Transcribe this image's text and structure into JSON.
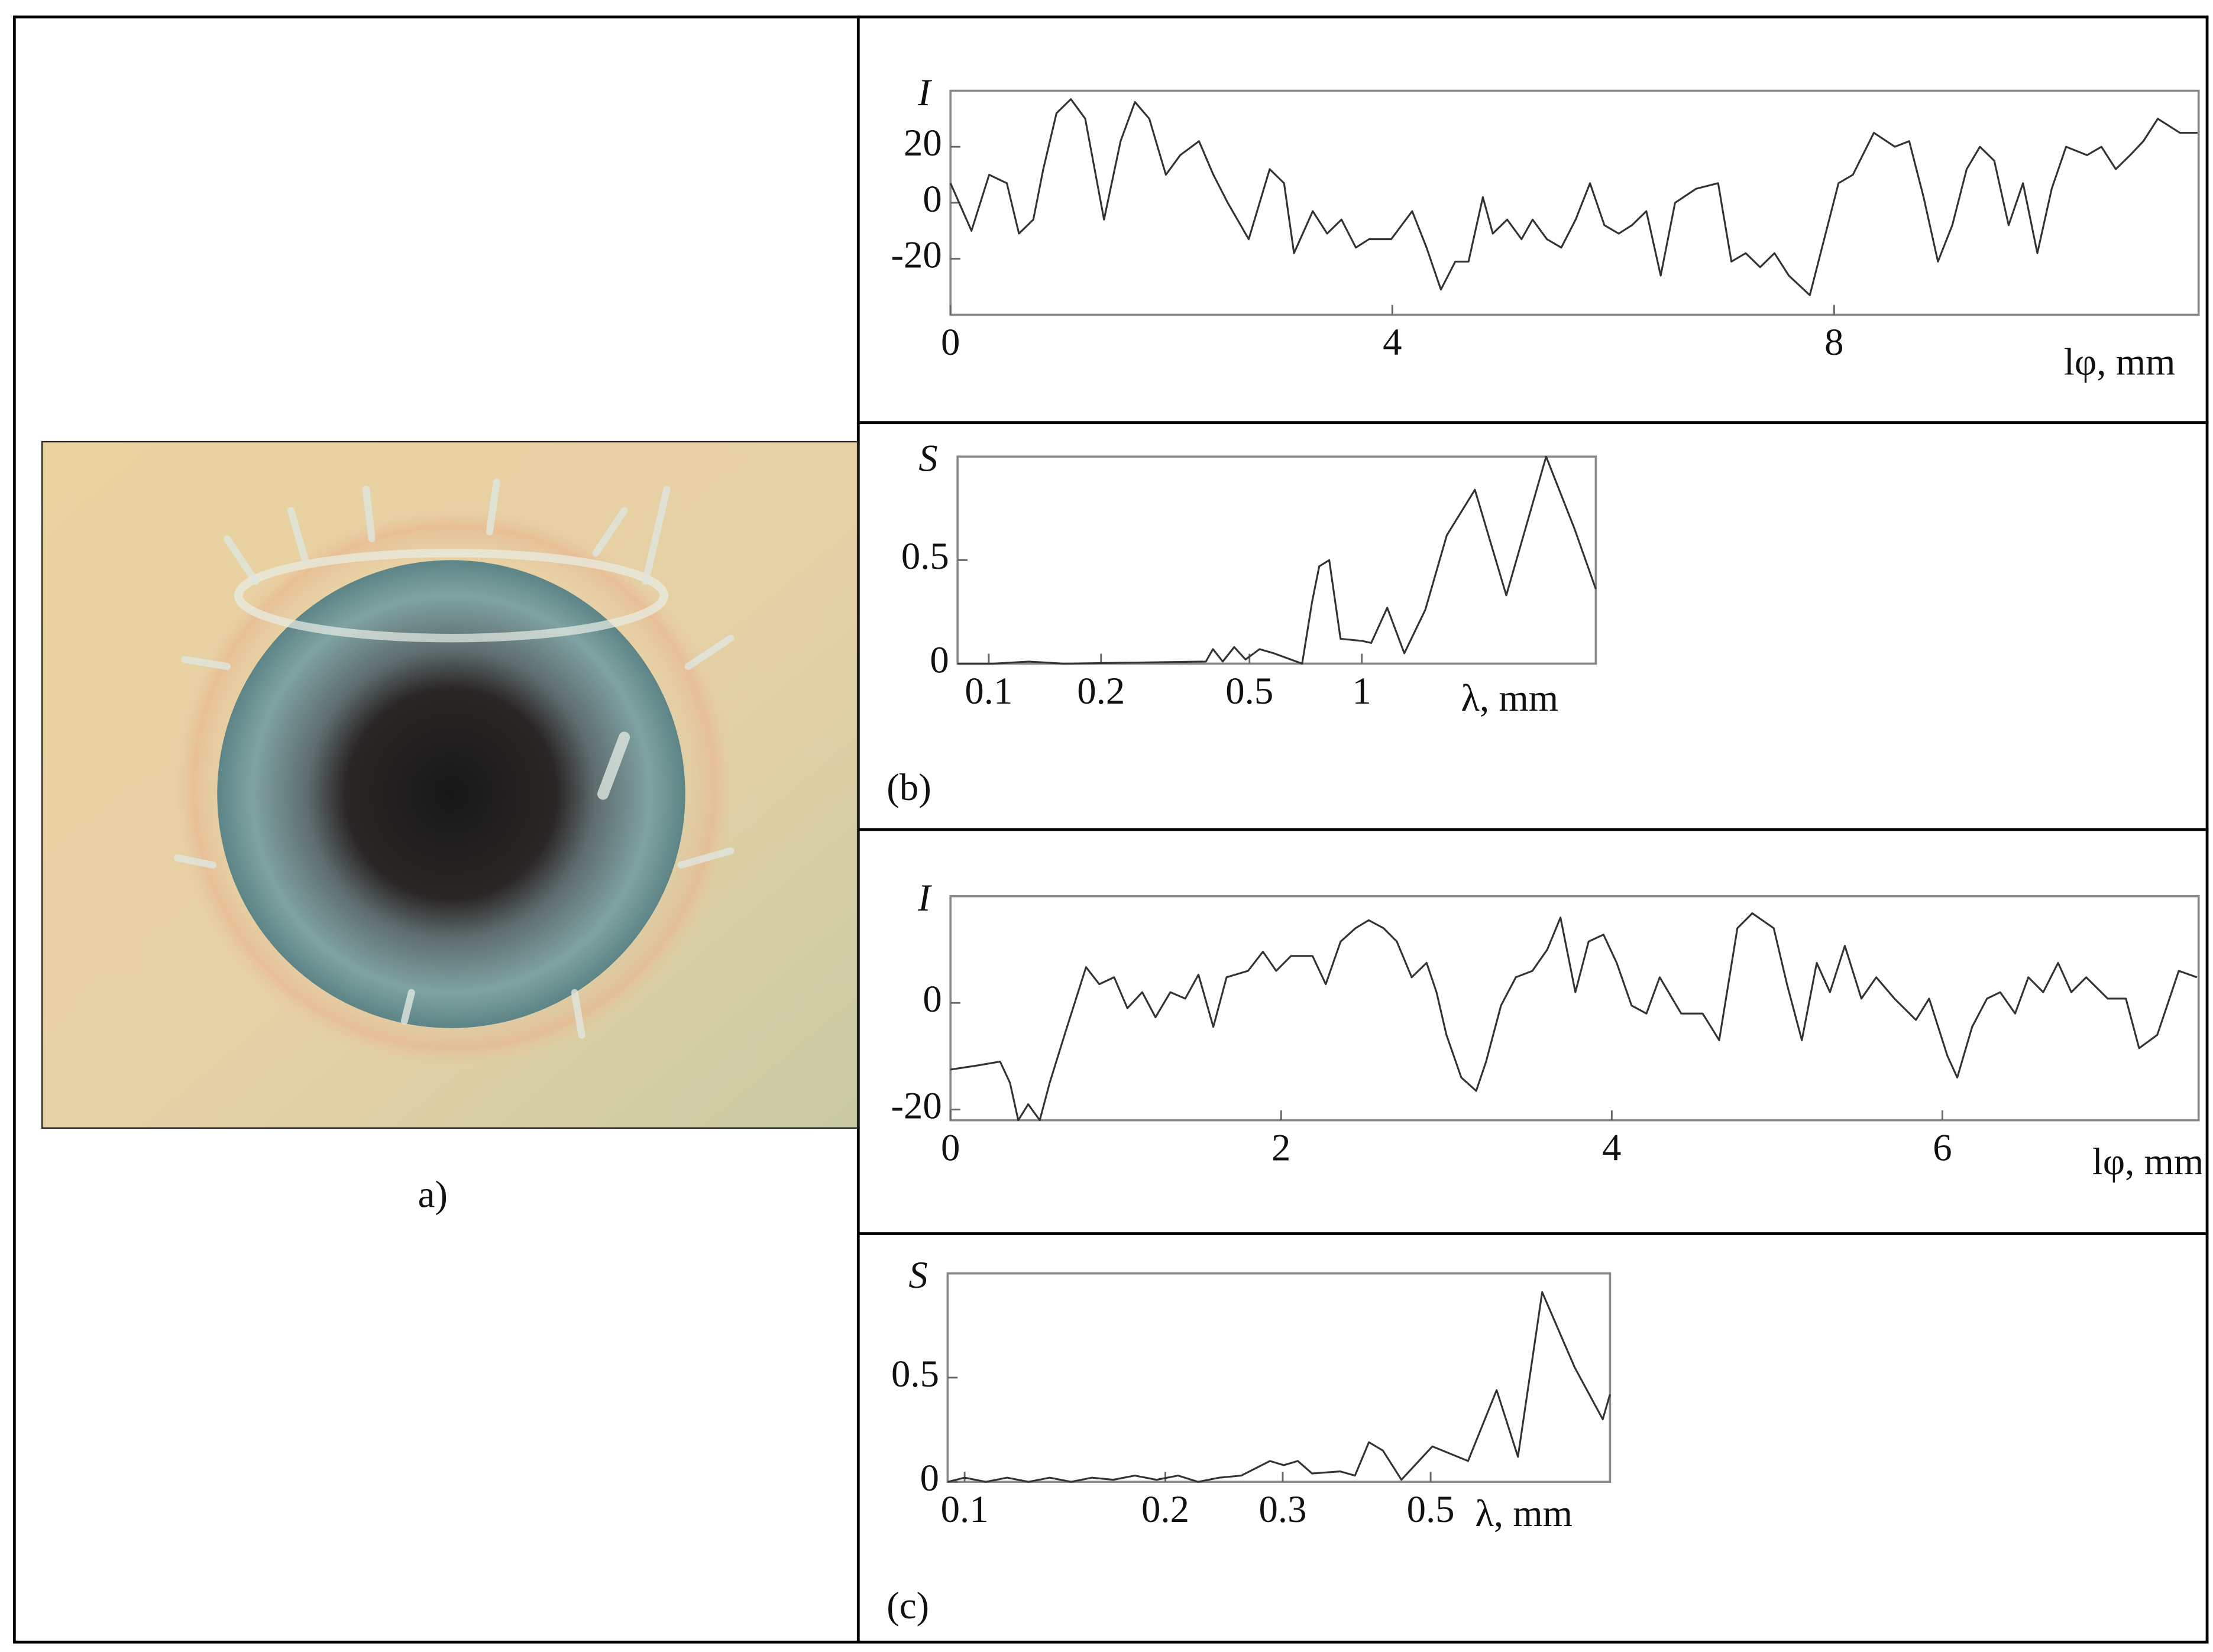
{
  "labels": {
    "a": "a)",
    "b": "(b)",
    "c": "(c)"
  },
  "chart_data": [
    {
      "type": "line",
      "y_label": "I",
      "x_label": "lφ, mm",
      "color": "#333333",
      "xlim": [
        0,
        11.3
      ],
      "ylim": [
        -40,
        40
      ],
      "xticks": [
        0,
        4,
        8
      ],
      "yticks": [
        -20,
        0,
        20
      ],
      "x": [
        0,
        0.19,
        0.35,
        0.51,
        0.62,
        0.75,
        0.84,
        0.96,
        1.09,
        1.22,
        1.39,
        1.54,
        1.67,
        1.8,
        1.95,
        2.08,
        2.25,
        2.38,
        2.51,
        2.7,
        2.89,
        3.02,
        3.11,
        3.28,
        3.41,
        3.54,
        3.67,
        3.79,
        3.99,
        4.18,
        4.31,
        4.44,
        4.57,
        4.69,
        4.82,
        4.91,
        5.04,
        5.17,
        5.27,
        5.4,
        5.53,
        5.66,
        5.79,
        5.92,
        6.05,
        6.17,
        6.3,
        6.43,
        6.56,
        6.75,
        6.95,
        7.07,
        7.2,
        7.33,
        7.46,
        7.59,
        7.78,
        7.91,
        8.04,
        8.17,
        8.36,
        8.55,
        8.68,
        8.81,
        8.94,
        9.07,
        9.2,
        9.32,
        9.45,
        9.58,
        9.71,
        9.84,
        9.97,
        10.1,
        10.29,
        10.42,
        10.55,
        10.68,
        10.8,
        10.93,
        11.13,
        11.29
      ],
      "values": [
        7,
        -10,
        10,
        7,
        -11,
        -6,
        12,
        32,
        37,
        30,
        -6,
        22,
        36,
        30,
        10,
        17,
        22,
        10,
        0,
        -13,
        12,
        7,
        -18,
        -3,
        -11,
        -6,
        -16,
        -13,
        -13,
        -3,
        -16,
        -31,
        -21,
        -21,
        2,
        -11,
        -6,
        -13,
        -6,
        -13,
        -16,
        -6,
        7,
        -8,
        -11,
        -8,
        -3,
        -26,
        0,
        5,
        7,
        -21,
        -18,
        -23,
        -18,
        -26,
        -33,
        -13,
        7,
        10,
        25,
        20,
        22,
        2,
        -21,
        -8,
        12,
        20,
        15,
        -8,
        7,
        -18,
        5,
        20,
        17,
        20,
        12,
        17,
        22,
        30,
        25,
        25
      ]
    },
    {
      "type": "line",
      "y_label": "S",
      "x_label": "λ, mm",
      "color": "#333333",
      "xscale": "log",
      "xlim": [
        0.0825,
        4.24
      ],
      "ylim": [
        0,
        1
      ],
      "xticks": [
        0.1,
        0.2,
        0.5,
        1
      ],
      "yticks": [
        0,
        0.5
      ],
      "x": [
        0.0825,
        0.1026,
        0.128,
        0.159,
        0.247,
        0.382,
        0.399,
        0.424,
        0.455,
        0.488,
        0.532,
        0.581,
        0.645,
        0.692,
        0.736,
        0.769,
        0.818,
        0.877,
        1.0,
        1.06,
        1.17,
        1.3,
        1.48,
        1.69,
        2.01,
        2.44,
        3.12,
        3.72,
        4.24
      ],
      "values": [
        0,
        0,
        0.01,
        0,
        0.005,
        0.01,
        0.07,
        0.01,
        0.08,
        0.02,
        0.07,
        0.05,
        0.02,
        0,
        0.3,
        0.47,
        0.5,
        0.12,
        0.11,
        0.1,
        0.27,
        0.05,
        0.26,
        0.62,
        0.84,
        0.33,
        1.0,
        0.65,
        0.36
      ]
    },
    {
      "type": "line",
      "y_label": "I",
      "x_label": "lφ, mm",
      "color": "#333333",
      "xlim": [
        0,
        7.55
      ],
      "ylim": [
        -22,
        20
      ],
      "xticks": [
        0,
        2,
        4,
        6
      ],
      "yticks": [
        -20,
        0
      ],
      "x": [
        0,
        0.17,
        0.3,
        0.36,
        0.41,
        0.47,
        0.54,
        0.6,
        0.69,
        0.82,
        0.9,
        0.99,
        1.07,
        1.16,
        1.24,
        1.33,
        1.42,
        1.5,
        1.59,
        1.67,
        1.8,
        1.89,
        1.97,
        2.06,
        2.19,
        2.27,
        2.36,
        2.45,
        2.53,
        2.62,
        2.7,
        2.79,
        2.88,
        2.94,
        3.0,
        3.09,
        3.18,
        3.24,
        3.33,
        3.42,
        3.52,
        3.61,
        3.69,
        3.78,
        3.86,
        3.95,
        4.03,
        4.12,
        4.21,
        4.29,
        4.42,
        4.55,
        4.65,
        4.76,
        4.85,
        4.98,
        5.06,
        5.15,
        5.24,
        5.32,
        5.41,
        5.51,
        5.6,
        5.71,
        5.84,
        5.92,
        6.03,
        6.09,
        6.18,
        6.27,
        6.35,
        6.44,
        6.52,
        6.61,
        6.7,
        6.78,
        6.87,
        7.0,
        7.11,
        7.19,
        7.3,
        7.43,
        7.54
      ],
      "values": [
        -12.5,
        -11.7,
        -11,
        -15,
        -22,
        -19,
        -22,
        -15,
        -6,
        6.7,
        3.5,
        4.8,
        -1,
        2,
        -2.7,
        2,
        0.8,
        5.3,
        -4.5,
        4.8,
        6,
        9.6,
        6,
        8.8,
        8.8,
        3.5,
        11.5,
        14,
        15.5,
        14,
        11.5,
        4.8,
        7.5,
        2,
        -6,
        -14,
        -16.5,
        -11,
        -0.5,
        4.8,
        6,
        10,
        16,
        2,
        11.5,
        12.8,
        7.5,
        -0.5,
        -2,
        4.8,
        -2,
        -2,
        -7,
        14,
        16.8,
        14,
        3.5,
        -7,
        7.5,
        2,
        10.7,
        0.8,
        4.8,
        0.8,
        -3.2,
        0.8,
        -9.9,
        -14,
        -4.5,
        0.8,
        2,
        -2,
        4.8,
        2,
        7.5,
        2,
        4.8,
        0.8,
        0.8,
        -8.5,
        -6,
        6,
        4.8
      ]
    },
    {
      "type": "line",
      "y_label": "S",
      "x_label": "λ, mm",
      "color": "#333333",
      "xscale": "log",
      "xlim": [
        0.0943,
        0.929
      ],
      "ylim": [
        0,
        1
      ],
      "xticks": [
        0.1,
        0.2,
        0.3,
        0.5
      ],
      "yticks": [
        0,
        0.5
      ],
      "x": [
        0.0943,
        0.1,
        0.1076,
        0.1158,
        0.1247,
        0.1342,
        0.1444,
        0.1553,
        0.1671,
        0.18,
        0.194,
        0.209,
        0.224,
        0.241,
        0.26,
        0.287,
        0.301,
        0.316,
        0.332,
        0.366,
        0.385,
        0.404,
        0.424,
        0.452,
        0.503,
        0.569,
        0.628,
        0.676,
        0.735,
        0.822,
        0.906,
        0.929
      ],
      "values": [
        0,
        0.02,
        0,
        0.02,
        0,
        0.02,
        0,
        0.02,
        0.01,
        0.03,
        0.01,
        0.03,
        0,
        0.02,
        0.03,
        0.1,
        0.08,
        0.1,
        0.04,
        0.05,
        0.03,
        0.19,
        0.15,
        0.01,
        0.17,
        0.1,
        0.44,
        0.12,
        0.91,
        0.55,
        0.3,
        0.42
      ]
    }
  ]
}
